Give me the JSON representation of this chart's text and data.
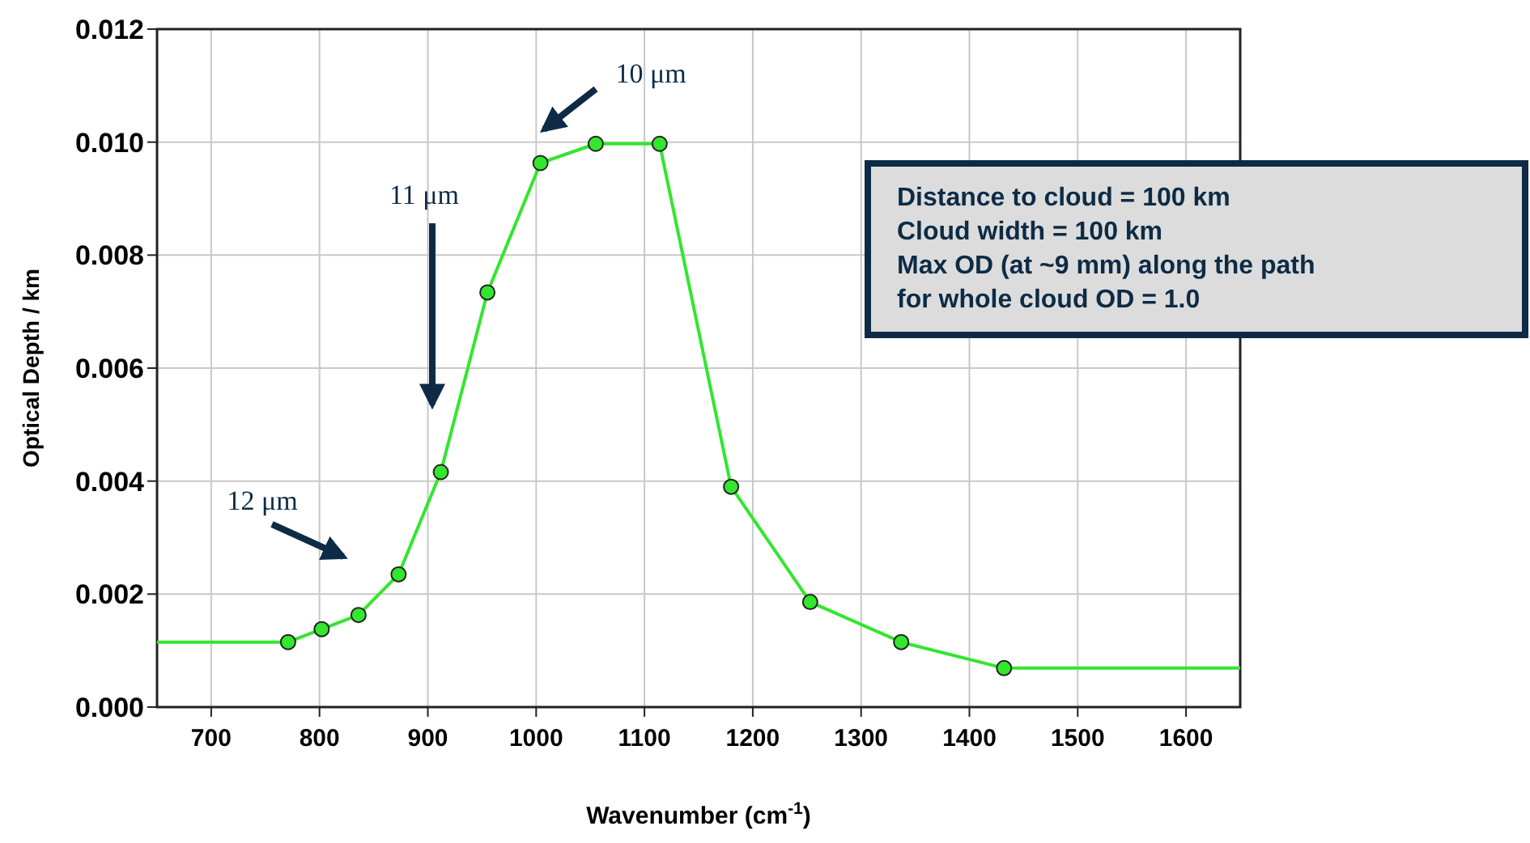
{
  "chart_data": {
    "type": "line",
    "xlabel": "Wavenumber (cm$^{-1}$)",
    "ylabel": "Optical Depth / km",
    "xlim": [
      650,
      1650
    ],
    "xticks": [
      700,
      800,
      900,
      1000,
      1100,
      1200,
      1300,
      1400,
      1500,
      1600
    ],
    "ylim": [
      0,
      0.012
    ],
    "yticks": [
      {
        "value": 0,
        "label": "0.000"
      },
      {
        "value": 0.002,
        "label": "0.002"
      },
      {
        "value": 0.004,
        "label": "0.004"
      },
      {
        "value": 0.006,
        "label": "0.006"
      },
      {
        "value": 0.008,
        "label": "0.008"
      },
      {
        "value": 0.01,
        "label": "0.010"
      },
      {
        "value": 0.012,
        "label": "0.012"
      }
    ],
    "grid": true,
    "series": [
      {
        "type": "line",
        "marker": "none",
        "color": "#33e62e",
        "x": [
          650,
          771,
          802,
          836,
          873,
          912,
          955,
          1004,
          1055,
          1114,
          1180,
          1253,
          1337,
          1432,
          1650
        ],
        "values": [
          0.00115,
          0.00115,
          0.00138,
          0.00163,
          0.00235,
          0.00416,
          0.00734,
          0.00963,
          0.00997,
          0.00997,
          0.0039,
          0.00186,
          0.00115,
          0.00069,
          0.00069
        ]
      },
      {
        "type": "scatter",
        "marker": "circle",
        "color": "#33e62e",
        "x": [
          771,
          802,
          836,
          873,
          912,
          955,
          1004,
          1055,
          1114,
          1180,
          1253,
          1337,
          1432
        ],
        "values": [
          0.00115,
          0.00138,
          0.00163,
          0.00235,
          0.00416,
          0.00734,
          0.00963,
          0.00997,
          0.00997,
          0.0039,
          0.00186,
          0.00115,
          0.00069
        ]
      }
    ],
    "annotations": [
      "10 μm",
      "11 μm",
      "12 μm",
      "Distance to cloud = 100 km\nCloud width = 100 km\nMax OD (at ~9 mm) along the path\nfor whole cloud OD = 1.0"
    ]
  }
}
